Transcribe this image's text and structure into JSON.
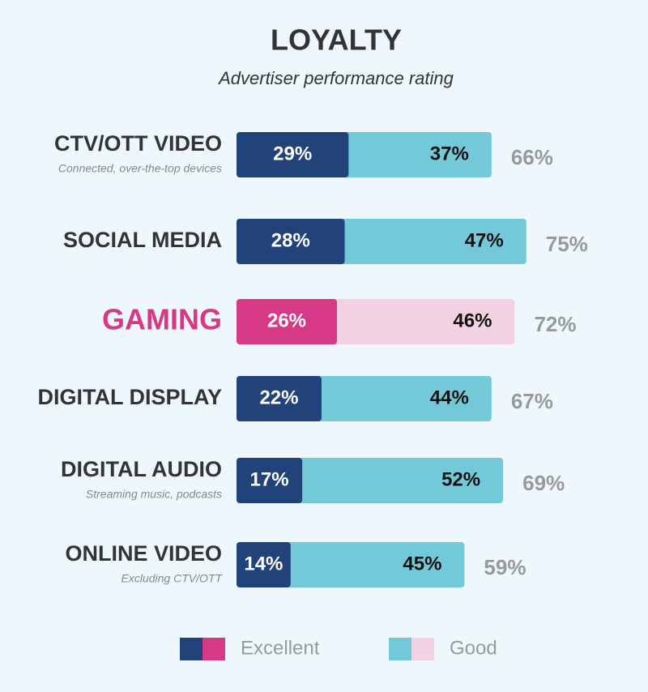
{
  "chart_data": {
    "type": "stacked-bar-horizontal",
    "title": "LOYALTY",
    "subtitle": "Advertiser performance rating",
    "categories": [
      "CTV/OTT VIDEO",
      "SOCIAL MEDIA",
      "GAMING",
      "DIGITAL DISPLAY",
      "DIGITAL AUDIO",
      "ONLINE VIDEO"
    ],
    "category_subtitles": [
      "Connected, over-the-top devices",
      null,
      null,
      null,
      "Streaming music, podcasts",
      "Excluding CTV/OTT"
    ],
    "category_colors": [
      "#333333",
      "#333333",
      "#d63a86",
      "#333333",
      "#333333",
      "#333333"
    ],
    "series": [
      {
        "name": "Excellent",
        "colors": [
          "#22427a",
          "#22427a",
          "#d63a86",
          "#22427a",
          "#22427a",
          "#22427a"
        ],
        "label_color": "#ffffff",
        "values": [
          29,
          28,
          26,
          22,
          17,
          14
        ],
        "value_labels": [
          "29%",
          "28%",
          "26%",
          "22%",
          "17%",
          "14%"
        ]
      },
      {
        "name": "Good",
        "colors": [
          "#74c9d9",
          "#74c9d9",
          "#f2d2e0",
          "#74c9d9",
          "#74c9d9",
          "#74c9d9"
        ],
        "label_color": "#111111",
        "values": [
          37,
          47,
          46,
          44,
          52,
          45
        ],
        "value_labels": [
          "37%",
          "47%",
          "46%",
          "44%",
          "52%",
          "45%"
        ]
      }
    ],
    "totals": {
      "color": "#999999",
      "values": [
        66,
        75,
        72,
        67,
        69,
        59
      ],
      "value_labels": [
        "66%",
        "75%",
        "72%",
        "67%",
        "69%",
        "59%"
      ]
    }
  }
}
